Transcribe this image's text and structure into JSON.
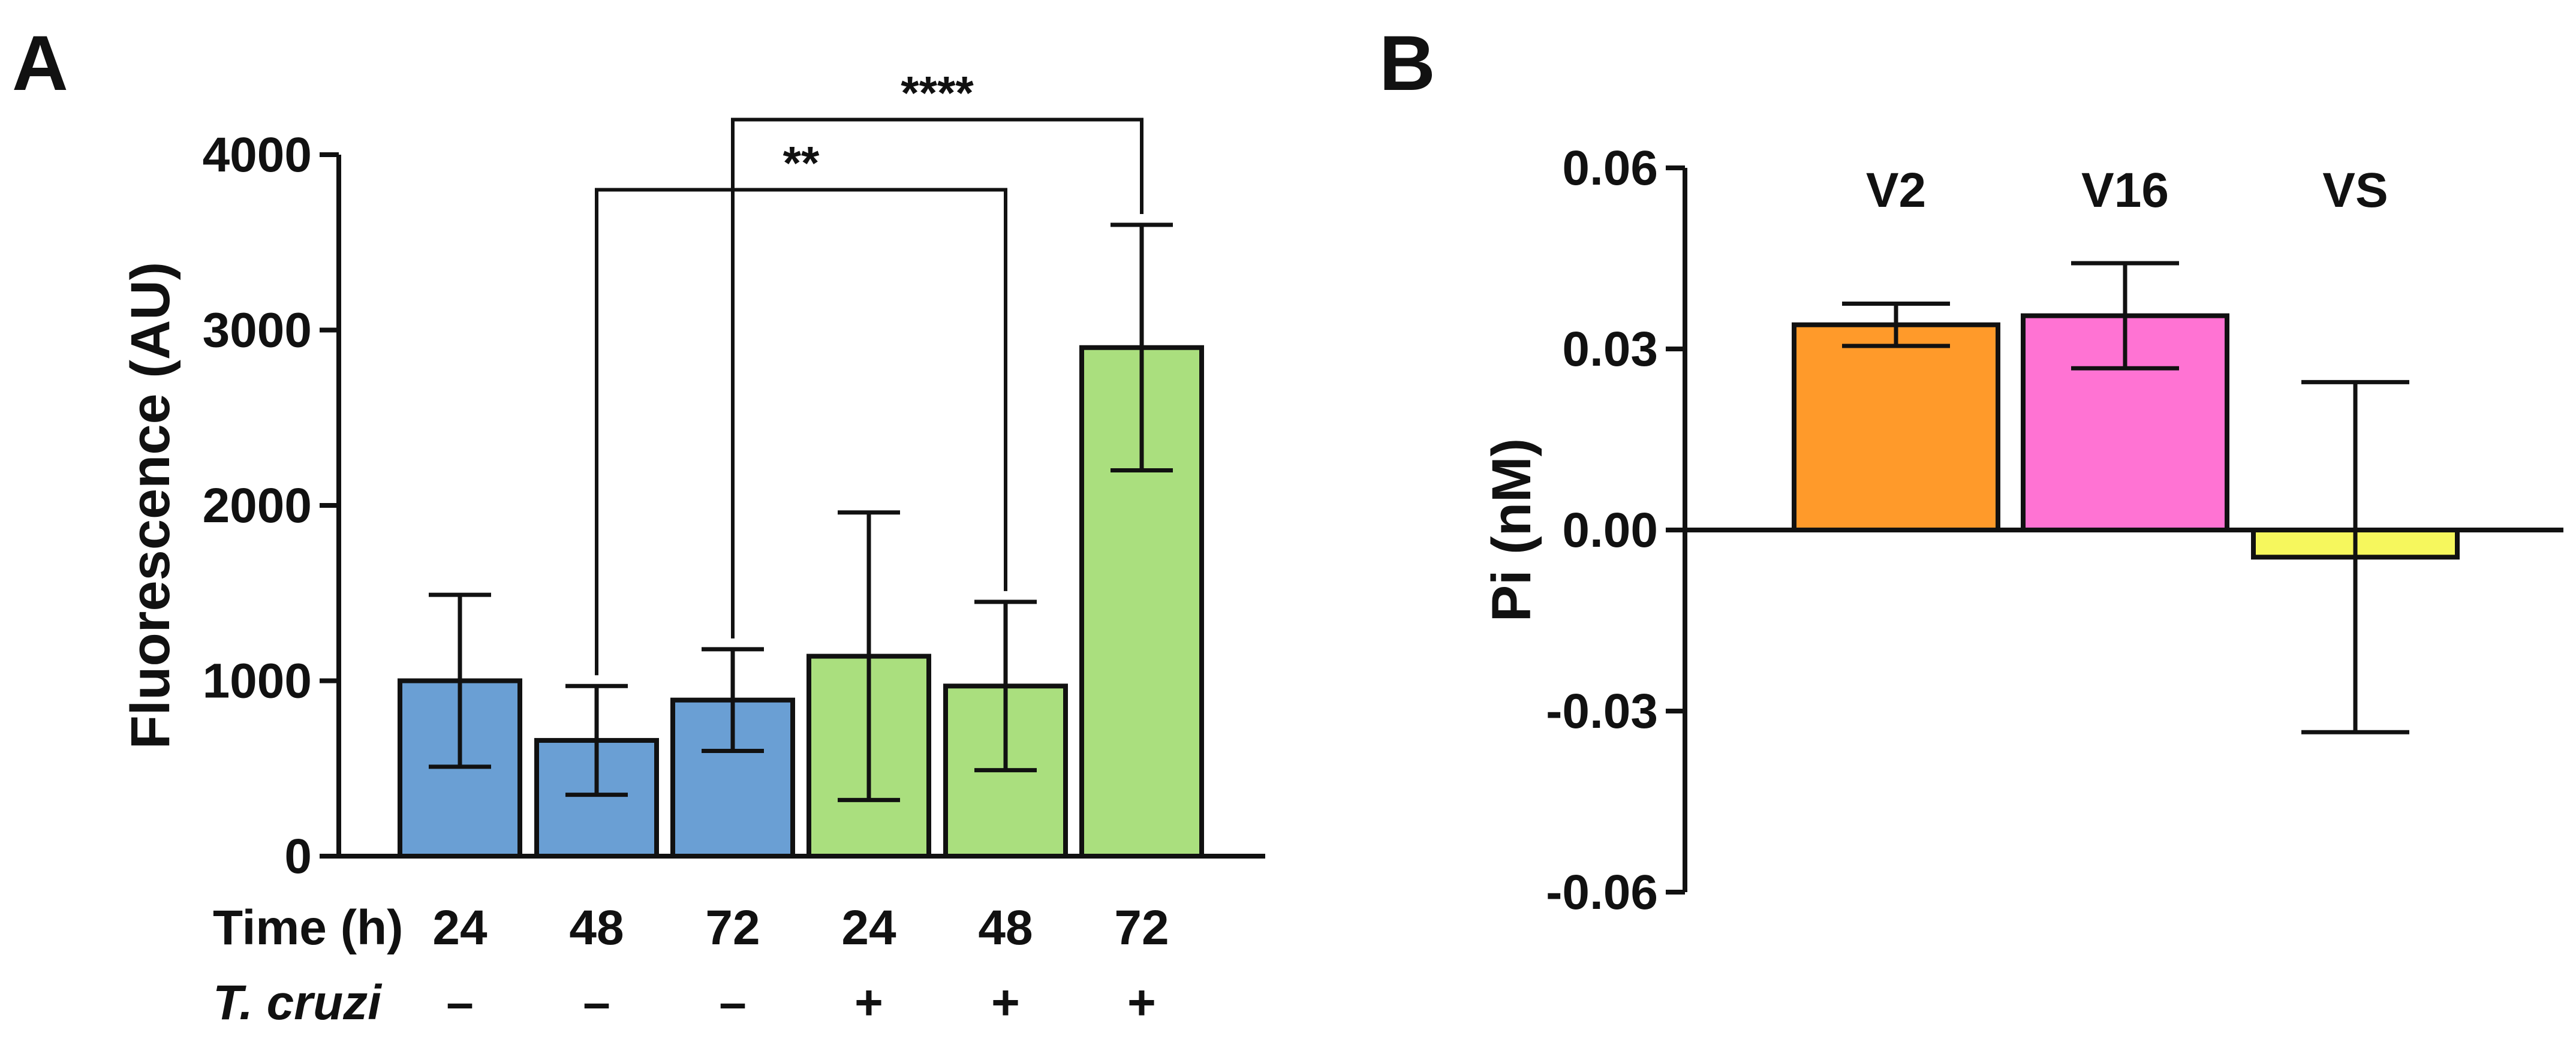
{
  "chart_data": [
    {
      "panel": "A",
      "type": "bar",
      "ylabel": "Fluorescence (AU)",
      "ylim": [
        0,
        4000
      ],
      "yticks": [
        0,
        1000,
        2000,
        3000,
        4000
      ],
      "ytick_labels": [
        "0",
        "1000",
        "2000",
        "3000",
        "4000"
      ],
      "row_labels": [
        "Time (h)",
        "T. cruzi"
      ],
      "categories": [
        "24",
        "48",
        "72",
        "24",
        "48",
        "72"
      ],
      "infection": [
        "–",
        "–",
        "–",
        "+",
        "+",
        "+"
      ],
      "values": [
        1000,
        660,
        890,
        1140,
        970,
        2900
      ],
      "errors": [
        490,
        310,
        290,
        820,
        480,
        700
      ],
      "colors": [
        "#6a9fd4",
        "#6a9fd4",
        "#6a9fd4",
        "#aadf7e",
        "#aadf7e",
        "#aadf7e"
      ],
      "significance": [
        {
          "from": 1,
          "to": 4,
          "label": "**",
          "y": 3800
        },
        {
          "from": 2,
          "to": 5,
          "label": "****",
          "y": 4200
        }
      ]
    },
    {
      "panel": "B",
      "type": "bar",
      "ylabel": "Pi (nM)",
      "ylim": [
        -0.06,
        0.06
      ],
      "yticks": [
        -0.06,
        -0.03,
        0.0,
        0.03,
        0.06
      ],
      "ytick_labels": [
        "-0.06",
        "-0.03",
        "0.00",
        "0.03",
        "0.06"
      ],
      "categories": [
        "V2",
        "V16",
        "VS"
      ],
      "values": [
        0.034,
        0.0355,
        -0.0045
      ],
      "errors": [
        0.0035,
        0.0087,
        0.029
      ],
      "colors": [
        "#ff9a2a",
        "#ff73d3",
        "#f6f75d"
      ]
    }
  ]
}
